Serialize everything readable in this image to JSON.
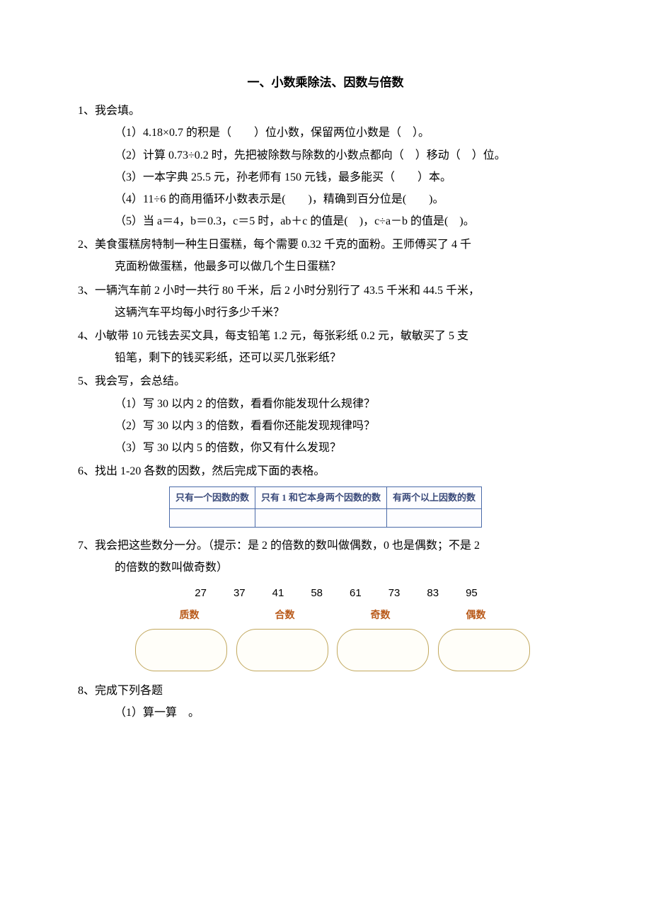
{
  "title": "一、小数乘除法、因数与倍数",
  "q1": {
    "main": "1、我会填。",
    "s1": "（1）4.18×0.7 的积是（　　）位小数，保留两位小数是（　）。",
    "s2": "（2）计算 0.73÷0.2 时，先把被除数与除数的小数点都向（　）移动（　）位。",
    "s3": "（3）一本字典 25.5 元，孙老师有 150 元钱，最多能买（　　）本。",
    "s4": "（4）11÷6 的商用循环小数表示是(　　)，精确到百分位是(　　)。",
    "s5": "（5）当 a＝4，b＝0.3，c＝5 时，ab＋c 的值是(　)，c÷a－b 的值是(　)。"
  },
  "q2": {
    "l1": "2、美食蛋糕房特制一种生日蛋糕，每个需要 0.32 千克的面粉。王师傅买了 4 千",
    "l2": "克面粉做蛋糕，他最多可以做几个生日蛋糕？"
  },
  "q3": {
    "l1": "3、一辆汽车前 2 小时一共行 80 千米，后 2 小时分别行了 43.5 千米和 44.5 千米，",
    "l2": "这辆汽车平均每小时行多少千米？"
  },
  "q4": {
    "l1": "4、小敏带 10 元钱去买文具，每支铅笔 1.2 元，每张彩纸 0.2 元，敏敏买了 5 支",
    "l2": "铅笔，剩下的钱买彩纸，还可以买几张彩纸？"
  },
  "q5": {
    "main": "5、我会写，会总结。",
    "s1": "（1）写 30 以内 2 的倍数，看看你能发现什么规律？",
    "s2": "（2）写 30 以内 3 的倍数，看看你还能发现规律吗？",
    "s3": "（3）写 30 以内 5 的倍数，你又有什么发现？"
  },
  "q6": {
    "main": "6、找出 1-20 各数的因数，然后完成下面的表格。",
    "table": {
      "headers": [
        "只有一个因数的数",
        "只有 1 和它本身两个因数的数",
        "有两个以上因数的数"
      ],
      "row": [
        "",
        "",
        ""
      ]
    }
  },
  "q7": {
    "l1": "7、我会把这些数分一分。（提示：是 2 的倍数的数叫做偶数，0 也是偶数；不是 2",
    "l2": "的倍数的数叫做奇数）",
    "numbers": [
      "27",
      "37",
      "41",
      "58",
      "61",
      "73",
      "83",
      "95"
    ],
    "labels": [
      "质数",
      "合数",
      "奇数",
      "偶数"
    ]
  },
  "q8": {
    "main": "8、完成下列各题",
    "s1": "（1）算一算　。"
  },
  "style": {
    "body_bg": "#ffffff",
    "text_color": "#000000",
    "table_border": "#4a6aa8",
    "table_text": "#3a4a7a",
    "label_color": "#b95a1a",
    "bubble_border": "#c2a85e",
    "font_size_body": 16,
    "font_size_table": 13,
    "font_size_numbers": 15,
    "font_size_labels": 14
  }
}
